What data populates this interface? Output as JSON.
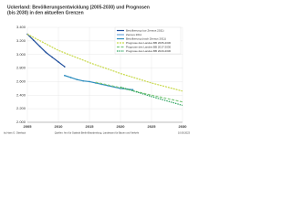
{
  "chart_data": {
    "type": "line",
    "title": "Uckerland: Bevölkerungsentwicklung (2005-2030) und Prognosen",
    "subtitle": "(bis 2030) in den aktuellen Grenzen",
    "xlim": [
      2005,
      2030
    ],
    "xticks": [
      2005,
      2010,
      2015,
      2020,
      2025,
      2030
    ],
    "ylim": [
      2000,
      3400
    ],
    "yticks": [
      {
        "value": 2000,
        "label": "2.000"
      },
      {
        "value": 2200,
        "label": "2.200"
      },
      {
        "value": 2400,
        "label": "2.400"
      },
      {
        "value": 2600,
        "label": "2.600"
      },
      {
        "value": 2800,
        "label": "2.800"
      },
      {
        "value": 3000,
        "label": "3.000"
      },
      {
        "value": 3200,
        "label": "3.200"
      },
      {
        "value": 3400,
        "label": "3.400"
      }
    ],
    "grid": true,
    "legend": "top-right",
    "series": [
      {
        "name": "Bevölkerung (vor Zensus 2011)",
        "color": "#1f4e9c",
        "x": [
          2005,
          2006,
          2007,
          2008,
          2009,
          2010,
          2011
        ],
        "values": [
          3300,
          3210,
          3120,
          3030,
          2960,
          2890,
          2820
        ]
      },
      {
        "name": "Zensus 2011",
        "color": "#6fa8dc",
        "x": [
          2011
        ],
        "values": [
          2690
        ]
      },
      {
        "name": "Bevölkerung (nach Zensus 2011)",
        "color": "#2b8cbe",
        "x": [
          2011,
          2012,
          2013,
          2014,
          2015,
          2016,
          2017,
          2018,
          2019,
          2020,
          2021,
          2022
        ],
        "values": [
          2690,
          2660,
          2630,
          2610,
          2600,
          2580,
          2560,
          2540,
          2520,
          2500,
          2490,
          2480
        ]
      },
      {
        "name": "Prognose des Landes BB 2005-2030",
        "color": "#c8d94a",
        "dash": "2,1",
        "x": [
          2005,
          2010,
          2015,
          2020,
          2025,
          2030
        ],
        "values": [
          3300,
          3060,
          2880,
          2720,
          2580,
          2460
        ]
      },
      {
        "name": "Prognose des Landes BB 2017-2030",
        "color": "#7fc97f",
        "dash": "3,1.5",
        "x": [
          2016,
          2020,
          2025,
          2030
        ],
        "values": [
          2590,
          2510,
          2400,
          2300
        ]
      },
      {
        "name": "Prognose des Landes BB 2020-2030",
        "color": "#2ca25f",
        "dash": "1.5,1",
        "x": [
          2020,
          2025,
          2030
        ],
        "values": [
          2520,
          2380,
          2250
        ]
      }
    ],
    "footer_left": "by Hans G. Oberlack",
    "footer_center": "Quellen: Amt für Statistik Berlin-Brandenburg, Landesamt für Bauen und Verkehr",
    "footer_right": "10.08.2023"
  }
}
